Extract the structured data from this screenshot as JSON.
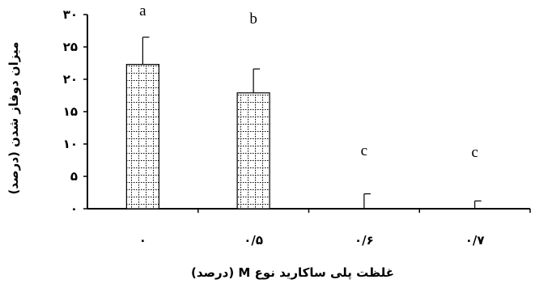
{
  "chart_data": {
    "type": "bar",
    "categories": [
      "۰",
      "۰/۵",
      "۰/۶",
      "۰/۷"
    ],
    "values": [
      22.3,
      17.9,
      0,
      0
    ],
    "error_bars": [
      4.2,
      3.7,
      2.3,
      1.2
    ],
    "significance_letters": [
      "a",
      "b",
      "c",
      "c"
    ],
    "ylim": [
      0,
      30
    ],
    "y_ticks": [
      0,
      5,
      10,
      15,
      20,
      25,
      30
    ],
    "y_tick_labels": [
      "۰",
      "۵",
      "۱۰",
      "۱۵",
      "۲۰",
      "۲۵",
      "۳۰"
    ],
    "xlabel": "غلظت پلی ساکارید نوع M (درصد)",
    "ylabel": "میزان دوفاز شدن (درصد)",
    "grid": false,
    "bar_pattern": "dotted-grid"
  }
}
